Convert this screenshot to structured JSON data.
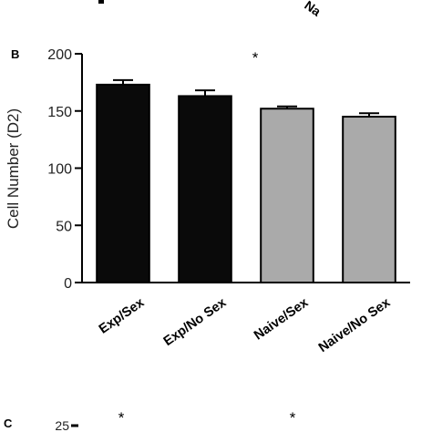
{
  "top_fragment": {
    "label": "Na"
  },
  "panel_b": {
    "label": "B",
    "chart_data": {
      "type": "bar",
      "title": "",
      "xlabel": "",
      "ylabel": "Cell Number (D2)",
      "ylim": [
        0,
        200
      ],
      "yticks": [
        0,
        50,
        100,
        150,
        200
      ],
      "grid": false,
      "legend": "none",
      "categories": [
        "Exp/Sex",
        "Exp/No Sex",
        "Naive/Sex",
        "Naive/No Sex"
      ],
      "values": [
        173,
        163,
        152,
        145
      ],
      "errors": [
        4,
        5,
        2,
        3
      ],
      "colors": [
        "#0a0a0a",
        "#0a0a0a",
        "#aaaaaa",
        "#aaaaaa"
      ],
      "annotations": [
        "*"
      ]
    }
  },
  "panel_c": {
    "label": "C",
    "first_tick": "25",
    "annotations": [
      "*",
      "*"
    ]
  }
}
